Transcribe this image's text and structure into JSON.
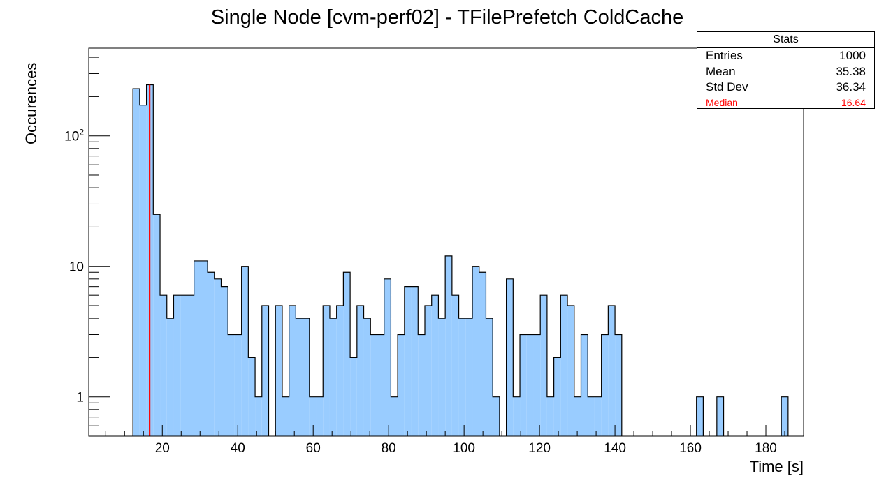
{
  "chart_data": {
    "type": "bar",
    "title": "Single Node [cvm-perf02] - TFilePrefetch ColdCache",
    "xlabel": "Time [s]",
    "ylabel": "Occurences",
    "xlim": [
      0.5,
      190
    ],
    "ylim": [
      0.5,
      470
    ],
    "log_y": true,
    "bin_width": 1.8,
    "x_ticks": [
      20,
      40,
      60,
      80,
      100,
      120,
      140,
      160,
      180
    ],
    "x_tick_labels": [
      "20",
      "40",
      "60",
      "80",
      "100",
      "120",
      "140",
      "160",
      "180"
    ],
    "y_tick_labels": [
      {
        "value": 1,
        "base": "1",
        "exp": ""
      },
      {
        "value": 10,
        "base": "10",
        "exp": ""
      },
      {
        "value": 100,
        "base": "10",
        "exp": "2"
      }
    ],
    "fill_color": "#99ccff",
    "line_color": "#000000",
    "median_line": {
      "value": 16.64,
      "color": "#ff0000"
    },
    "grid": false,
    "legend": "none",
    "bins": [
      [
        12.2,
        230
      ],
      [
        14.0,
        172
      ],
      [
        15.8,
        246
      ],
      [
        17.6,
        25
      ],
      [
        19.4,
        6
      ],
      [
        21.2,
        4
      ],
      [
        23.0,
        6
      ],
      [
        24.8,
        6
      ],
      [
        26.6,
        6
      ],
      [
        28.4,
        11
      ],
      [
        30.2,
        11
      ],
      [
        32.0,
        9
      ],
      [
        33.8,
        8
      ],
      [
        35.6,
        7
      ],
      [
        37.4,
        3
      ],
      [
        39.2,
        3
      ],
      [
        41.0,
        10
      ],
      [
        42.8,
        2
      ],
      [
        44.6,
        1
      ],
      [
        46.4,
        5
      ],
      [
        48.2,
        0
      ],
      [
        50.0,
        5
      ],
      [
        51.8,
        1
      ],
      [
        53.6,
        5
      ],
      [
        55.4,
        4
      ],
      [
        57.2,
        4
      ],
      [
        59.0,
        1
      ],
      [
        60.8,
        1
      ],
      [
        62.6,
        5
      ],
      [
        64.4,
        4
      ],
      [
        66.2,
        5
      ],
      [
        68.0,
        9
      ],
      [
        69.8,
        2
      ],
      [
        71.6,
        5
      ],
      [
        73.4,
        4
      ],
      [
        75.2,
        3
      ],
      [
        77.0,
        3
      ],
      [
        78.8,
        8
      ],
      [
        80.6,
        1
      ],
      [
        82.4,
        3
      ],
      [
        84.2,
        7
      ],
      [
        86.0,
        7
      ],
      [
        87.8,
        3
      ],
      [
        89.6,
        5
      ],
      [
        91.4,
        6
      ],
      [
        93.2,
        4
      ],
      [
        95.0,
        12
      ],
      [
        96.8,
        6
      ],
      [
        98.6,
        4
      ],
      [
        100.4,
        4
      ],
      [
        102.2,
        10
      ],
      [
        104.0,
        9
      ],
      [
        105.8,
        4
      ],
      [
        107.6,
        1
      ],
      [
        109.4,
        0
      ],
      [
        111.2,
        8
      ],
      [
        113.0,
        1
      ],
      [
        114.8,
        3
      ],
      [
        116.6,
        3
      ],
      [
        118.4,
        3
      ],
      [
        120.2,
        6
      ],
      [
        122.0,
        1
      ],
      [
        123.8,
        2
      ],
      [
        125.6,
        6
      ],
      [
        127.4,
        5
      ],
      [
        129.2,
        1
      ],
      [
        131.0,
        3
      ],
      [
        132.8,
        1
      ],
      [
        134.6,
        1
      ],
      [
        136.4,
        3
      ],
      [
        138.2,
        5
      ],
      [
        140.0,
        3
      ],
      [
        161.6,
        1
      ],
      [
        167.0,
        1
      ],
      [
        184.1,
        1
      ]
    ]
  },
  "stats": {
    "title": "Stats",
    "rows": [
      {
        "label": "Entries",
        "value": "1000"
      },
      {
        "label": "Mean",
        "value": "35.38"
      },
      {
        "label": "Std Dev",
        "value": "36.34"
      }
    ],
    "median": {
      "label": "Median",
      "value": "16.64",
      "color": "#ff0000"
    }
  }
}
